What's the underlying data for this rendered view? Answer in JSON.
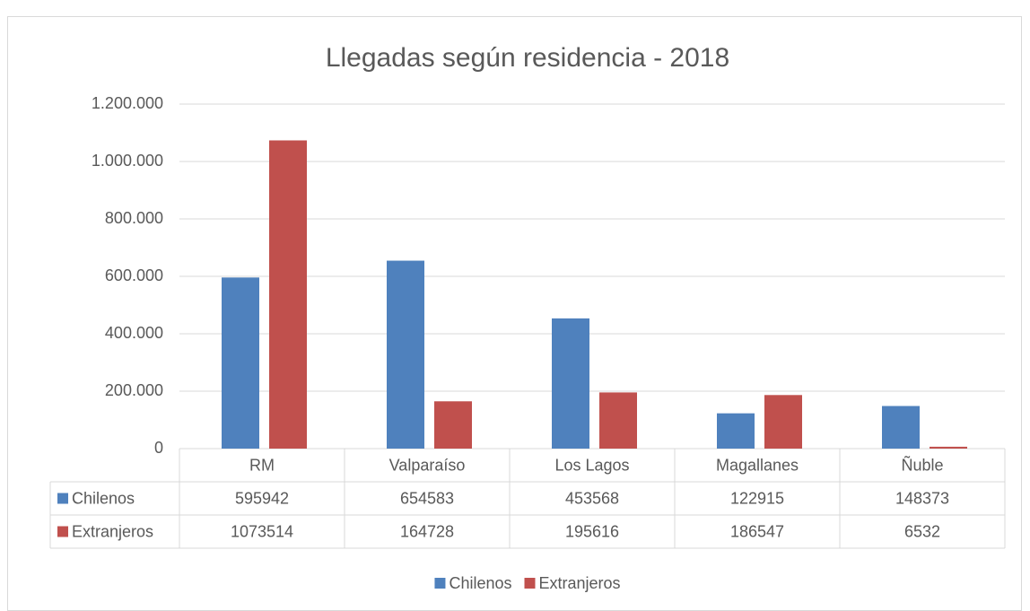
{
  "chart_data": {
    "type": "bar",
    "title": "Llegadas según residencia - 2018",
    "categories": [
      "RM",
      "Valparaíso",
      "Los Lagos",
      "Magallanes",
      "Ñuble"
    ],
    "series": [
      {
        "name": "Chilenos",
        "color": "#4f81bd",
        "values": [
          595942,
          654583,
          453568,
          122915,
          148373
        ]
      },
      {
        "name": "Extranjeros",
        "color": "#c0504d",
        "values": [
          1073514,
          164728,
          195616,
          186547,
          6532
        ]
      }
    ],
    "ylim": [
      0,
      1200000
    ],
    "yticks": [
      0,
      {
        "value": 200000,
        "label": "200.000"
      },
      {
        "value": 400000,
        "label": "400.000"
      },
      {
        "value": 600000,
        "label": "600.000"
      },
      {
        "value": 800000,
        "label": "800.000"
      },
      {
        "value": 1000000,
        "label": "1.000.000"
      },
      {
        "value": 1200000,
        "label": "1.200.000"
      }
    ],
    "grid": true,
    "legend": "bottom",
    "data_table": true
  }
}
